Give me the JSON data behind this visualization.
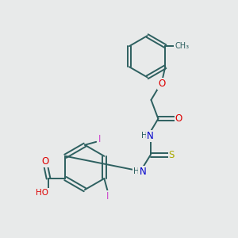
{
  "bg_color": "#e8eaea",
  "bond_color": "#2d6060",
  "atom_colors": {
    "O": "#dd0000",
    "N": "#0000cc",
    "S": "#aaaa00",
    "I": "#cc44cc",
    "H": "#2d6060",
    "C": "#2d6060"
  }
}
